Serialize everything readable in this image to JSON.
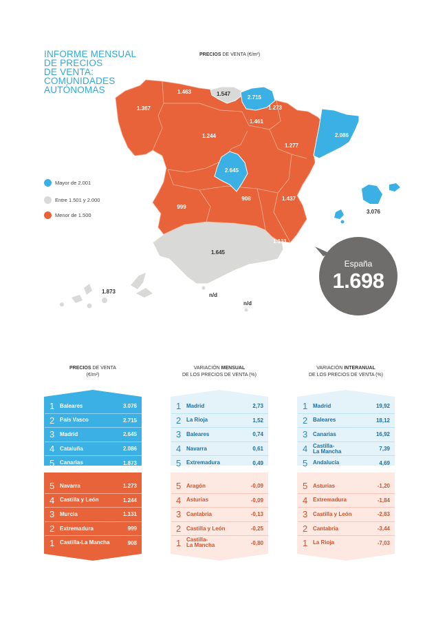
{
  "title_lines": [
    "INFORME MENSUAL",
    "DE PRECIOS",
    "DE VENTA:",
    "COMUNIDADES",
    "AUTÓNOMAS"
  ],
  "map_header": {
    "bold": "PRECIOS",
    "rest": "DE VENTA (€/m²)"
  },
  "colors": {
    "high": "#3bb0e5",
    "mid": "#d9d9d7",
    "low": "#e9633a",
    "badge": "#6e6d6b"
  },
  "legend": [
    {
      "label": "Mayor de 2.001",
      "color": "#3bb0e5"
    },
    {
      "label": "Entre 1.501 y 2.000",
      "color": "#d9d9d7"
    },
    {
      "label": "Menor de 1.500",
      "color": "#e9633a"
    }
  ],
  "map_labels": {
    "galicia": "1.367",
    "asturias": "1.463",
    "cantabria": "1.547",
    "pais_vasco": "2.715",
    "navarra": "1.273",
    "la_rioja": "1.461",
    "castilla_leon": "1.244",
    "aragon": "1.277",
    "cataluna": "2.086",
    "madrid": "2.645",
    "extremadura": "999",
    "castilla_la_mancha": "908",
    "valencia": "1.437",
    "baleares": "3.076",
    "murcia": "1.131",
    "andalucia": "1.645",
    "canarias": "1.873",
    "ceuta": "n/d",
    "melilla": "n/d"
  },
  "badge": {
    "label": "España",
    "value": "1.698"
  },
  "chart_data": [
    {
      "type": "table",
      "title": "PRECIOS DE VENTA (€/m²)",
      "top": [
        {
          "rank": "1",
          "name": "Baleares",
          "value": "3.076"
        },
        {
          "rank": "2",
          "name": "País Vasco",
          "value": "2.715"
        },
        {
          "rank": "3",
          "name": "Madrid",
          "value": "2.645"
        },
        {
          "rank": "4",
          "name": "Cataluña",
          "value": "2.086"
        },
        {
          "rank": "5",
          "name": "Canarias",
          "value": "1.873"
        }
      ],
      "bottom": [
        {
          "rank": "5",
          "name": "Navarra",
          "value": "1.273"
        },
        {
          "rank": "4",
          "name": "Castilla y León",
          "value": "1.244"
        },
        {
          "rank": "3",
          "name": "Murcia",
          "value": "1.131"
        },
        {
          "rank": "2",
          "name": "Extremadura",
          "value": "999"
        },
        {
          "rank": "1",
          "name": "Castilla-La Mancha",
          "value": "908"
        }
      ]
    },
    {
      "type": "table",
      "title": "VARIACIÓN MENSUAL DE LOS PRECIOS DE VENTA (%)",
      "top": [
        {
          "rank": "1",
          "name": "Madrid",
          "value": "2,73"
        },
        {
          "rank": "2",
          "name": "La Rioja",
          "value": "1,52"
        },
        {
          "rank": "3",
          "name": "Baleares",
          "value": "0,74"
        },
        {
          "rank": "4",
          "name": "Navarra",
          "value": "0,61"
        },
        {
          "rank": "5",
          "name": "Extremadura",
          "value": "0,49"
        }
      ],
      "bottom": [
        {
          "rank": "5",
          "name": "Aragón",
          "value": "-0,09"
        },
        {
          "rank": "4",
          "name": "Asturias",
          "value": "-0,09"
        },
        {
          "rank": "3",
          "name": "Cantabria",
          "value": "-0,13"
        },
        {
          "rank": "2",
          "name": "Castilla y León",
          "value": "-0,25"
        },
        {
          "rank": "1",
          "name": "Castilla-\nLa Mancha",
          "value": "-0,80"
        }
      ]
    },
    {
      "type": "table",
      "title": "VARIACIÓN INTERANUAL DE LOS PRECIOS DE VENTA (%)",
      "top": [
        {
          "rank": "1",
          "name": "Madrid",
          "value": "19,92"
        },
        {
          "rank": "2",
          "name": "Baleares",
          "value": "18,12"
        },
        {
          "rank": "3",
          "name": "Canarias",
          "value": "16,92"
        },
        {
          "rank": "4",
          "name": "Castilla-\nLa Mancha",
          "value": "7,39"
        },
        {
          "rank": "5",
          "name": "Andalucía",
          "value": "4,69"
        }
      ],
      "bottom": [
        {
          "rank": "5",
          "name": "Asturias",
          "value": "-1,20"
        },
        {
          "rank": "4",
          "name": "Extremadura",
          "value": "-1,84"
        },
        {
          "rank": "3",
          "name": "Castilla y León",
          "value": "-2,83"
        },
        {
          "rank": "2",
          "name": "Cantabria",
          "value": "-3,44"
        },
        {
          "rank": "1",
          "name": "La Rioja",
          "value": "-7,03"
        }
      ]
    }
  ],
  "col_heads": [
    {
      "bold": "PRECIOS",
      "rest1": " DE VENTA",
      "line2": "(€/m²)"
    },
    {
      "pre": "VARIACIÓN ",
      "bold": "MENSUAL",
      "line2": "DE LOS PRECIOS DE VENTA (%)"
    },
    {
      "pre": "VARIACIÓN ",
      "bold": "INTERANUAL",
      "line2": "DE LOS PRECIOS DE VENTA (%)"
    }
  ]
}
